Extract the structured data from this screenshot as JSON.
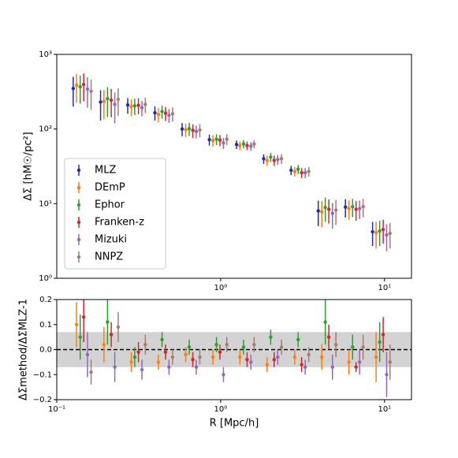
{
  "chart_data": [
    {
      "type": "errorbar",
      "ylabel": "ΔΣ [hM☉/pc²]",
      "xscale": "log",
      "yscale": "log",
      "xlim": [
        0.1,
        14.6
      ],
      "ylim": [
        1,
        1000
      ],
      "xticks": [
        {
          "value": 1,
          "label": "10⁰"
        },
        {
          "value": 10,
          "label": "10¹"
        }
      ],
      "yticks": [
        {
          "value": 1,
          "label": "10⁰"
        },
        {
          "value": 10,
          "label": "10¹"
        },
        {
          "value": 100,
          "label": "10²"
        },
        {
          "value": 1000,
          "label": "10³"
        }
      ],
      "legend": "lower left",
      "series": [
        {
          "name": "MLZ",
          "color": "#1f2db0",
          "x": [
            0.126,
            0.185,
            0.271,
            0.397,
            0.582,
            0.853,
            1.25,
            1.83,
            2.69,
            3.94,
            5.77,
            8.45
          ],
          "values": [
            350,
            230,
            210,
            165,
            100,
            72,
            62,
            40,
            28,
            8,
            9,
            4.2
          ],
          "errors": [
            150,
            100,
            50,
            35,
            20,
            12,
            8,
            6,
            4,
            3,
            2.5,
            1.5
          ]
        },
        {
          "name": "DEmP",
          "color": "#ff7f0e",
          "x": [
            0.132,
            0.194,
            0.285,
            0.417,
            0.612,
            0.897,
            1.31,
            1.92,
            2.83,
            4.14,
            6.06,
            8.88
          ],
          "values": [
            385,
            235,
            200,
            157,
            98,
            70,
            60,
            38,
            27,
            7.8,
            8.6,
            4.1
          ],
          "errors": [
            160,
            100,
            50,
            35,
            20,
            12,
            8,
            6,
            4,
            3,
            2.5,
            1.6
          ]
        },
        {
          "name": "Ephor",
          "color": "#2ca02c",
          "x": [
            0.139,
            0.204,
            0.299,
            0.439,
            0.643,
            0.943,
            1.38,
            2.02,
            2.97,
            4.35,
            6.38,
            9.34
          ],
          "values": [
            368,
            255,
            204,
            172,
            101,
            73,
            63,
            42,
            29,
            8.9,
            9.1,
            4.3
          ],
          "errors": [
            150,
            110,
            50,
            35,
            20,
            12,
            8,
            6,
            4,
            3.2,
            2.5,
            1.6
          ]
        },
        {
          "name": "Franken-z",
          "color": "#d62728",
          "x": [
            0.146,
            0.215,
            0.315,
            0.461,
            0.676,
            0.99,
            1.45,
            2.12,
            3.12,
            4.57,
            6.7,
            9.81
          ],
          "values": [
            395,
            244,
            208,
            163,
            96,
            71,
            60,
            38,
            26,
            8.4,
            8.4,
            4.5
          ],
          "errors": [
            160,
            100,
            50,
            35,
            20,
            12,
            8,
            6,
            4,
            3,
            2.5,
            1.6
          ]
        },
        {
          "name": "Mizuki",
          "color": "#9467bd",
          "x": [
            0.154,
            0.226,
            0.331,
            0.484,
            0.71,
            1.04,
            1.53,
            2.23,
            3.28,
            4.81,
            7.04,
            10.3
          ],
          "values": [
            343,
            214,
            193,
            153,
            93,
            65,
            59,
            39,
            26,
            7.4,
            8.6,
            3.8
          ],
          "errors": [
            150,
            95,
            45,
            32,
            18,
            11,
            8,
            6,
            4,
            2.8,
            2.4,
            1.5
          ]
        },
        {
          "name": "NNPZ",
          "color": "#a47d6e",
          "x": [
            0.162,
            0.237,
            0.347,
            0.509,
            0.746,
            1.09,
            1.6,
            2.35,
            3.45,
            5.05,
            7.4,
            10.8
          ],
          "values": [
            320,
            250,
            214,
            160,
            97,
            73,
            63,
            40,
            27,
            8.2,
            9.1,
            4.0
          ],
          "errors": [
            140,
            100,
            50,
            35,
            20,
            12,
            8,
            6,
            4,
            3,
            2.5,
            1.5
          ]
        }
      ]
    },
    {
      "type": "errorbar",
      "ylabel": "ΔΣmethod/ΔΣMLZ-1",
      "xlabel": "R [Mpc/h]",
      "xscale": "log",
      "xlim": [
        0.1,
        14.6
      ],
      "ylim": [
        -0.2,
        0.2
      ],
      "xticks": [
        {
          "value": 0.1,
          "label": "10⁻¹"
        },
        {
          "value": 1,
          "label": "10⁰"
        },
        {
          "value": 10,
          "label": "10¹"
        }
      ],
      "yticks": [
        {
          "value": -0.2,
          "label": "−0.2"
        },
        {
          "value": -0.1,
          "label": "−0.1"
        },
        {
          "value": 0,
          "label": "0.0"
        },
        0.1,
        0.2
      ],
      "band": [
        -0.07,
        0.07
      ],
      "hline": 0,
      "series": [
        {
          "name": "DEmP",
          "color": "#ff7f0e",
          "x": [
            0.132,
            0.194,
            0.285,
            0.417,
            0.612,
            0.897,
            1.31,
            1.92,
            2.83,
            4.14,
            6.06,
            8.88
          ],
          "values": [
            0.1,
            0.02,
            -0.05,
            -0.05,
            -0.02,
            -0.03,
            -0.03,
            -0.06,
            -0.03,
            -0.03,
            -0.05,
            -0.03
          ],
          "errors": [
            0.09,
            0.07,
            0.04,
            0.03,
            0.03,
            0.03,
            0.03,
            0.03,
            0.03,
            0.05,
            0.05,
            0.1
          ]
        },
        {
          "name": "Ephor",
          "color": "#2ca02c",
          "x": [
            0.139,
            0.204,
            0.299,
            0.439,
            0.643,
            0.943,
            1.38,
            2.02,
            2.97,
            4.35,
            6.38,
            9.34
          ],
          "values": [
            0.05,
            0.11,
            -0.03,
            0.04,
            0.01,
            0.02,
            0.01,
            0.05,
            0.04,
            0.11,
            0.01,
            0.03
          ],
          "errors": [
            0.09,
            0.09,
            0.04,
            0.03,
            0.03,
            0.03,
            0.03,
            0.03,
            0.03,
            0.09,
            0.05,
            0.08
          ]
        },
        {
          "name": "Franken-z",
          "color": "#d62728",
          "x": [
            0.146,
            0.215,
            0.315,
            0.461,
            0.676,
            0.99,
            1.45,
            2.12,
            3.12,
            4.57,
            6.7,
            9.81
          ],
          "values": [
            0.13,
            0.06,
            -0.01,
            -0.01,
            -0.04,
            -0.01,
            -0.04,
            -0.04,
            -0.06,
            0.05,
            -0.07,
            0.06
          ],
          "errors": [
            0.1,
            0.05,
            0.04,
            0.03,
            0.03,
            0.03,
            0.03,
            0.03,
            0.03,
            0.05,
            0.02,
            0.07
          ]
        },
        {
          "name": "Mizuki",
          "color": "#9467bd",
          "x": [
            0.154,
            0.226,
            0.331,
            0.484,
            0.71,
            1.04,
            1.53,
            2.23,
            3.28,
            4.81,
            7.04,
            10.3
          ],
          "values": [
            -0.02,
            -0.07,
            -0.08,
            -0.07,
            -0.07,
            -0.1,
            -0.05,
            -0.03,
            -0.07,
            -0.07,
            -0.05,
            -0.1
          ],
          "errors": [
            0.09,
            0.06,
            0.04,
            0.03,
            0.03,
            0.03,
            0.03,
            0.03,
            0.03,
            0.05,
            0.05,
            0.09
          ]
        },
        {
          "name": "NNPZ",
          "color": "#a47d6e",
          "x": [
            0.162,
            0.237,
            0.347,
            0.509,
            0.746,
            1.09,
            1.6,
            2.35,
            3.45,
            5.05,
            7.4,
            10.8
          ],
          "values": [
            -0.09,
            0.09,
            0.02,
            -0.03,
            -0.03,
            0.02,
            0.02,
            0.01,
            -0.02,
            0.02,
            0.01,
            -0.05
          ],
          "errors": [
            0.05,
            0.06,
            0.04,
            0.03,
            0.03,
            0.03,
            0.03,
            0.03,
            0.03,
            0.05,
            0.05,
            0.07
          ]
        }
      ]
    }
  ]
}
